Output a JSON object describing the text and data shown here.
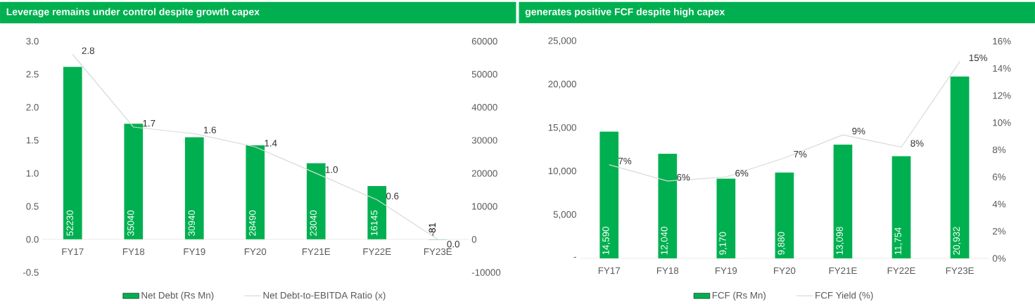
{
  "chart_data": [
    {
      "type": "bar",
      "title": "Leverage remains under control despite growth capex",
      "categories": [
        "FY17",
        "FY18",
        "FY19",
        "FY20",
        "FY21E",
        "FY22E",
        "FY23E"
      ],
      "series": [
        {
          "name": "Net Debt (Rs Mn)",
          "axis": "y2",
          "color": "#00b050",
          "values": [
            52230,
            35040,
            30940,
            28490,
            23040,
            16145,
            -81
          ],
          "value_labels": [
            "52230",
            "35040",
            "30940",
            "28490",
            "23040",
            "16145",
            "-81"
          ]
        },
        {
          "name": "Net Debt-to-EBITDA Ratio (x)",
          "type": "line",
          "axis": "y",
          "color": "#d9d9d9",
          "values": [
            2.8,
            1.7,
            1.6,
            1.4,
            1.0,
            0.6,
            0.0
          ],
          "value_labels": [
            "2.8",
            "1.7",
            "1.6",
            "1.4",
            "1.0",
            "0.6",
            "0.0"
          ]
        }
      ],
      "ylim": [
        -0.5,
        3.0
      ],
      "yticks": [
        {
          "value": -0.5,
          "label": "-0.5"
        },
        {
          "value": 0,
          "label": "0.0"
        },
        {
          "value": 0.5,
          "label": "0.5"
        },
        {
          "value": 1,
          "label": "1.0"
        },
        {
          "value": 1.5,
          "label": "1.5"
        },
        {
          "value": 2,
          "label": "2.0"
        },
        {
          "value": 2.5,
          "label": "2.5"
        },
        {
          "value": 3,
          "label": "3.0"
        }
      ],
      "y2lim": [
        -10000,
        60000
      ],
      "y2ticks": [
        -10000,
        0,
        10000,
        20000,
        30000,
        40000,
        50000,
        60000
      ],
      "legend": "bottom"
    },
    {
      "type": "bar",
      "title": "generates positive FCF despite high capex",
      "categories": [
        "FY17",
        "FY18",
        "FY19",
        "FY20",
        "FY21E",
        "FY22E",
        "FY23E"
      ],
      "series": [
        {
          "name": "FCF (Rs Mn)",
          "axis": "y",
          "color": "#00b050",
          "values": [
            14590,
            12040,
            9170,
            9880,
            13098,
            11754,
            20932
          ],
          "value_labels": [
            "14,590",
            "12,040",
            "9,170",
            "9,880",
            "13,098",
            "11,754",
            "20,932"
          ]
        },
        {
          "name": "FCF Yield (%)",
          "type": "line",
          "axis": "y2",
          "color": "#d9d9d9",
          "values": [
            6.9,
            5.7,
            6.0,
            7.4,
            9.1,
            8.2,
            14.5
          ],
          "value_labels": [
            "7%",
            "6%",
            "6%",
            "7%",
            "9%",
            "8%",
            "15%"
          ]
        }
      ],
      "ylim": [
        0,
        25000
      ],
      "yticks": [
        {
          "value": 0,
          "label": "-"
        },
        {
          "value": 5000,
          "label": "5,000"
        },
        {
          "value": 10000,
          "label": "10,000"
        },
        {
          "value": 15000,
          "label": "15,000"
        },
        {
          "value": 20000,
          "label": "20,000"
        },
        {
          "value": 25000,
          "label": "25,000"
        }
      ],
      "y2lim": [
        0,
        16
      ],
      "y2ticks": [
        {
          "value": 0,
          "label": "0%"
        },
        {
          "value": 2,
          "label": "2%"
        },
        {
          "value": 4,
          "label": "4%"
        },
        {
          "value": 6,
          "label": "6%"
        },
        {
          "value": 8,
          "label": "8%"
        },
        {
          "value": 10,
          "label": "10%"
        },
        {
          "value": 12,
          "label": "12%"
        },
        {
          "value": 14,
          "label": "14%"
        },
        {
          "value": 16,
          "label": "16%"
        }
      ],
      "legend": "bottom"
    }
  ]
}
